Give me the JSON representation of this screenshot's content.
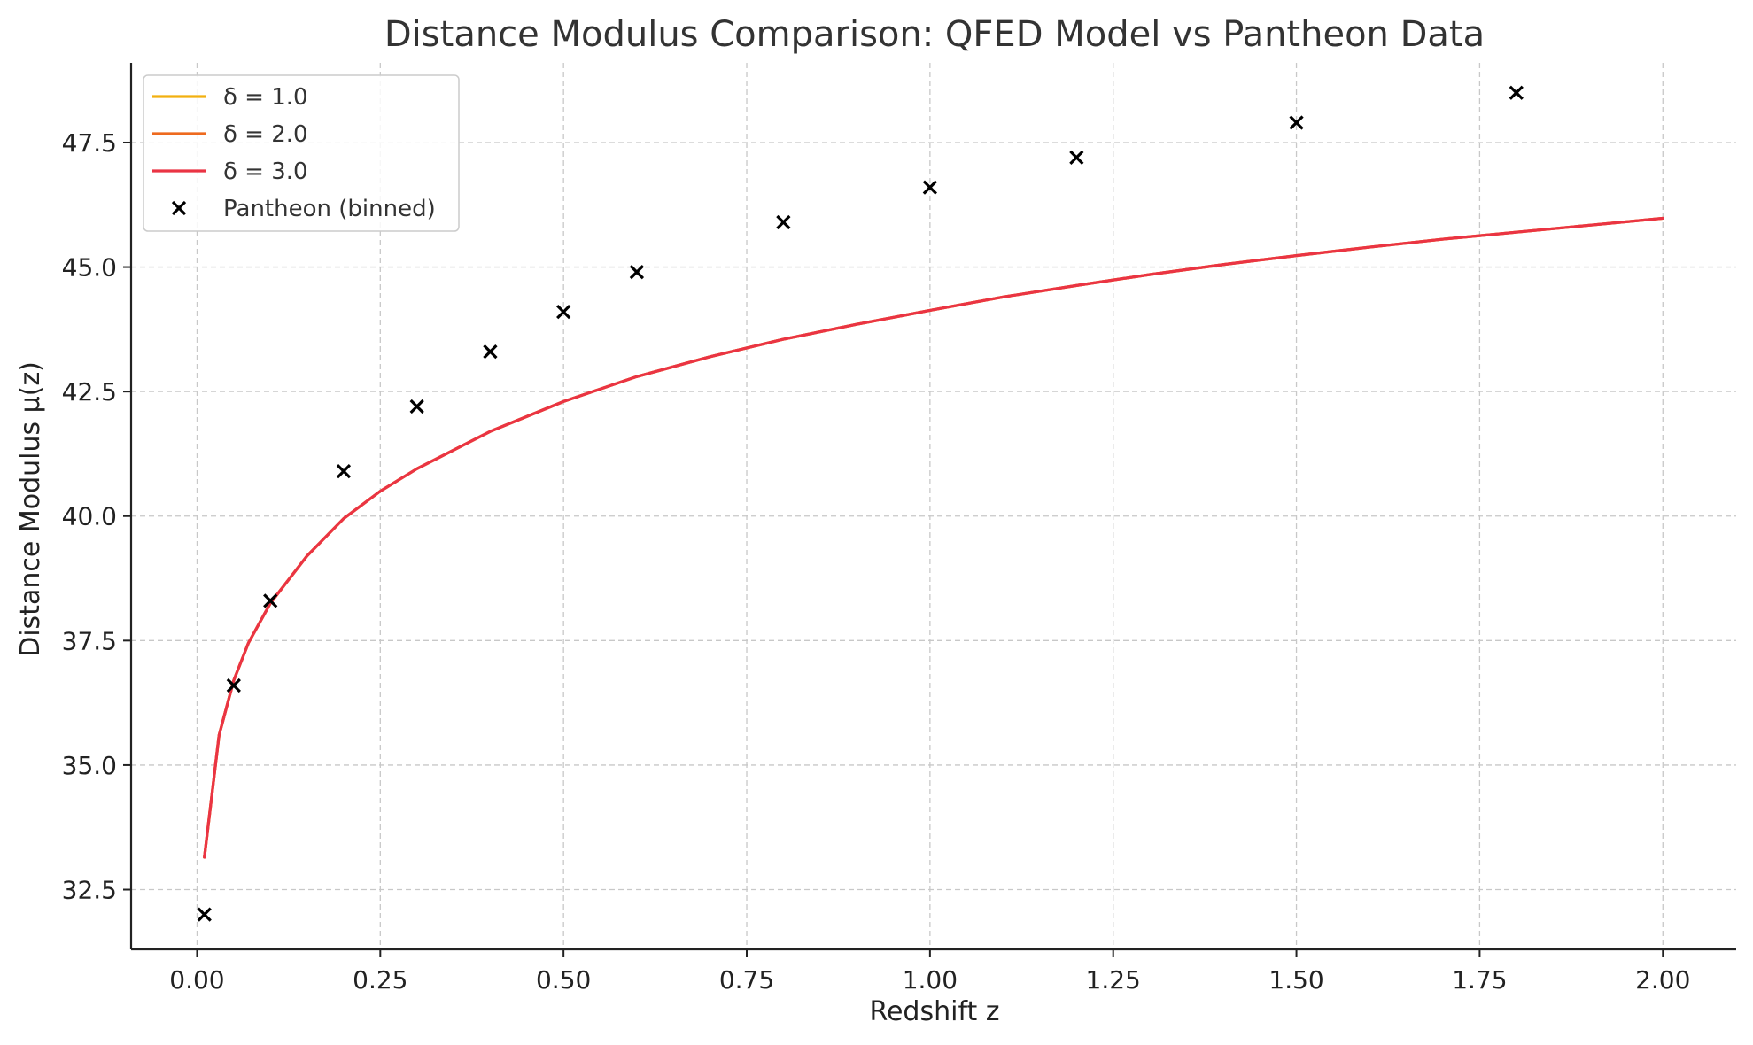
{
  "chart_data": {
    "type": "line",
    "title": "Distance Modulus Comparison: QFED Model vs Pantheon Data",
    "xlabel": "Redshift z",
    "ylabel": "Distance Modulus μ(z)",
    "xlim": [
      -0.09,
      2.1
    ],
    "ylim": [
      31.3,
      49.1
    ],
    "xticks": [
      0.0,
      0.25,
      0.5,
      0.75,
      1.0,
      1.25,
      1.5,
      1.75,
      2.0
    ],
    "xtick_labels": [
      "0.00",
      "0.25",
      "0.50",
      "0.75",
      "1.00",
      "1.25",
      "1.50",
      "1.75",
      "2.00"
    ],
    "yticks": [
      32.5,
      35.0,
      37.5,
      40.0,
      42.5,
      45.0,
      47.5
    ],
    "ytick_labels": [
      "32.5",
      "35.0",
      "37.5",
      "40.0",
      "42.5",
      "45.0",
      "47.5"
    ],
    "grid": true,
    "legend_position": "top-left",
    "series": [
      {
        "name": "δ = 1.0",
        "kind": "line",
        "color": "#f2b010",
        "x": [
          0.01,
          0.03,
          0.05,
          0.07,
          0.1,
          0.15,
          0.2,
          0.25,
          0.3,
          0.4,
          0.5,
          0.6,
          0.7,
          0.8,
          0.9,
          1.0,
          1.1,
          1.2,
          1.3,
          1.4,
          1.5,
          1.6,
          1.7,
          1.8,
          1.9,
          2.0
        ],
        "y": [
          33.15,
          35.6,
          36.7,
          37.45,
          38.25,
          39.2,
          39.95,
          40.5,
          40.95,
          41.7,
          42.3,
          42.8,
          43.2,
          43.55,
          43.85,
          44.13,
          44.4,
          44.63,
          44.85,
          45.05,
          45.23,
          45.4,
          45.56,
          45.7,
          45.84,
          45.98
        ]
      },
      {
        "name": "δ = 2.0",
        "kind": "line",
        "color": "#ee6a1f",
        "x": [
          0.01,
          0.03,
          0.05,
          0.07,
          0.1,
          0.15,
          0.2,
          0.25,
          0.3,
          0.4,
          0.5,
          0.6,
          0.7,
          0.8,
          0.9,
          1.0,
          1.1,
          1.2,
          1.3,
          1.4,
          1.5,
          1.6,
          1.7,
          1.8,
          1.9,
          2.0
        ],
        "y": [
          33.15,
          35.6,
          36.7,
          37.45,
          38.25,
          39.2,
          39.95,
          40.5,
          40.95,
          41.7,
          42.3,
          42.8,
          43.2,
          43.55,
          43.85,
          44.13,
          44.4,
          44.63,
          44.85,
          45.05,
          45.23,
          45.4,
          45.56,
          45.7,
          45.84,
          45.98
        ]
      },
      {
        "name": "δ = 3.0",
        "kind": "line",
        "color": "#ea3444",
        "x": [
          0.01,
          0.03,
          0.05,
          0.07,
          0.1,
          0.15,
          0.2,
          0.25,
          0.3,
          0.4,
          0.5,
          0.6,
          0.7,
          0.8,
          0.9,
          1.0,
          1.1,
          1.2,
          1.3,
          1.4,
          1.5,
          1.6,
          1.7,
          1.8,
          1.9,
          2.0
        ],
        "y": [
          33.15,
          35.6,
          36.7,
          37.45,
          38.25,
          39.2,
          39.95,
          40.5,
          40.95,
          41.7,
          42.3,
          42.8,
          43.2,
          43.55,
          43.85,
          44.13,
          44.4,
          44.63,
          44.85,
          45.05,
          45.23,
          45.4,
          45.56,
          45.7,
          45.84,
          45.98
        ]
      },
      {
        "name": "Pantheon (binned)",
        "kind": "scatter",
        "marker": "x",
        "color": "#000000",
        "x": [
          0.01,
          0.05,
          0.1,
          0.2,
          0.3,
          0.4,
          0.5,
          0.6,
          0.8,
          1.0,
          1.2,
          1.5,
          1.8
        ],
        "y": [
          32.0,
          36.6,
          38.3,
          40.9,
          42.2,
          43.3,
          44.1,
          44.9,
          45.9,
          46.6,
          47.2,
          47.9,
          48.5
        ]
      }
    ]
  }
}
